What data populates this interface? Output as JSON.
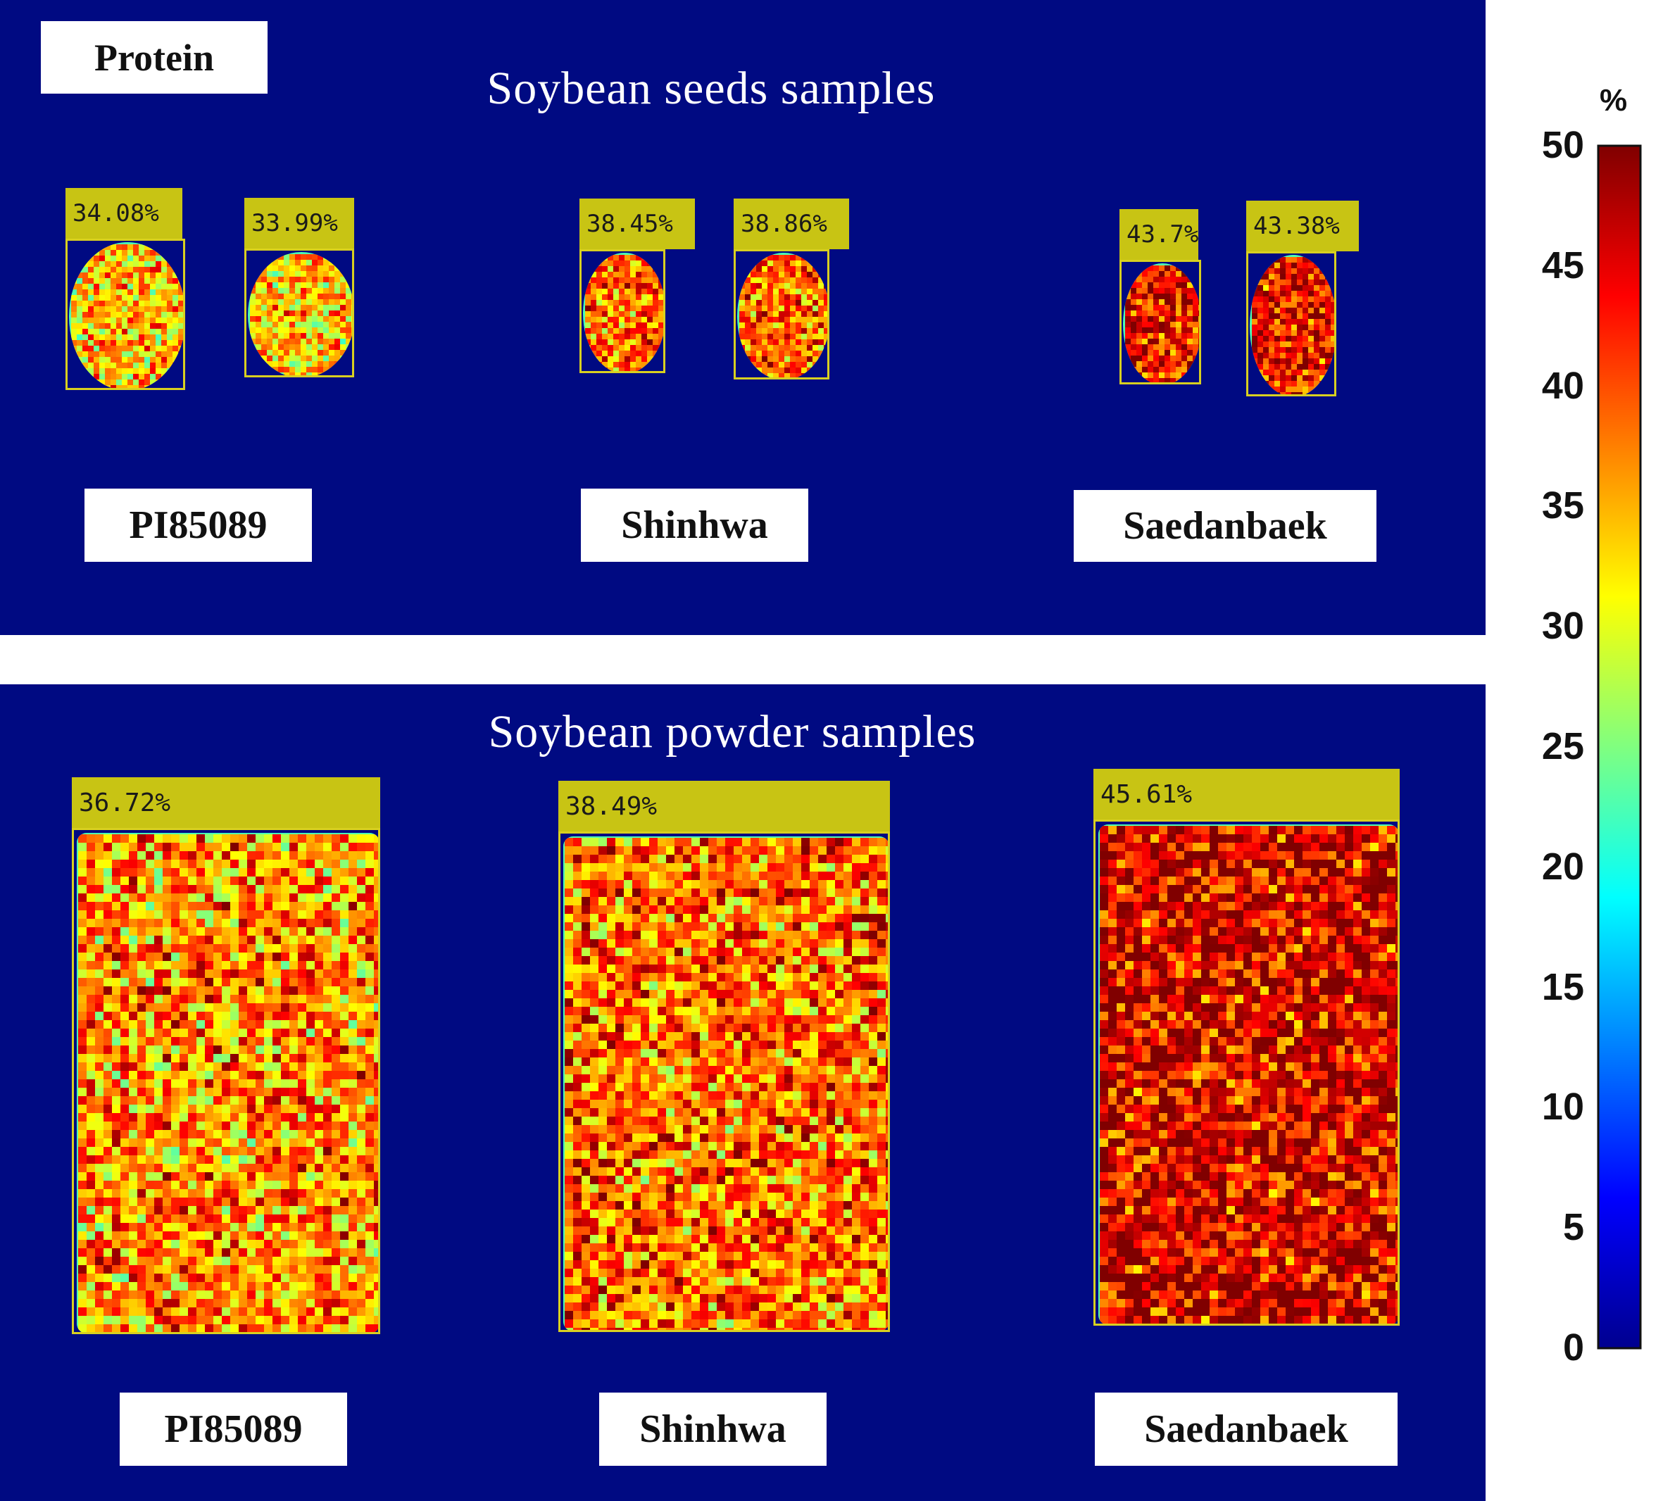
{
  "figure": {
    "label": "Protein",
    "sections": [
      {
        "id": "seeds",
        "title": "Soybean seeds samples",
        "varieties": [
          "PI85089",
          "Shinhwa",
          "Saedanbaek"
        ],
        "samples": [
          {
            "variety": "PI85089",
            "value_text": "34.08%",
            "value": 34.08
          },
          {
            "variety": "PI85089",
            "value_text": "33.99%",
            "value": 33.99
          },
          {
            "variety": "Shinhwa",
            "value_text": "38.45%",
            "value": 38.45
          },
          {
            "variety": "Shinhwa",
            "value_text": "38.86%",
            "value": 38.86
          },
          {
            "variety": "Saedanbaek",
            "value_text": "43.7%",
            "value": 43.7
          },
          {
            "variety": "Saedanbaek",
            "value_text": "43.38%",
            "value": 43.38
          }
        ]
      },
      {
        "id": "powder",
        "title": "Soybean powder samples",
        "varieties": [
          "PI85089",
          "Shinhwa",
          "Saedanbaek"
        ],
        "samples": [
          {
            "variety": "PI85089",
            "value_text": "36.72%",
            "value": 36.72
          },
          {
            "variety": "Shinhwa",
            "value_text": "38.49%",
            "value": 38.49
          },
          {
            "variety": "Saedanbaek",
            "value_text": "45.61%",
            "value": 45.61
          }
        ]
      }
    ]
  },
  "chart_data": {
    "type": "heatmap",
    "colormap": "jet",
    "colorbar": {
      "unit": "%",
      "range": [
        0,
        50
      ],
      "ticks": [
        "0",
        "5",
        "10",
        "15",
        "20",
        "25",
        "30",
        "35",
        "40",
        "45",
        "50"
      ]
    }
  },
  "colors": {
    "panel_background": "#000a82",
    "tag_background": "#c8c414",
    "bbox_border": "#d8d020"
  }
}
